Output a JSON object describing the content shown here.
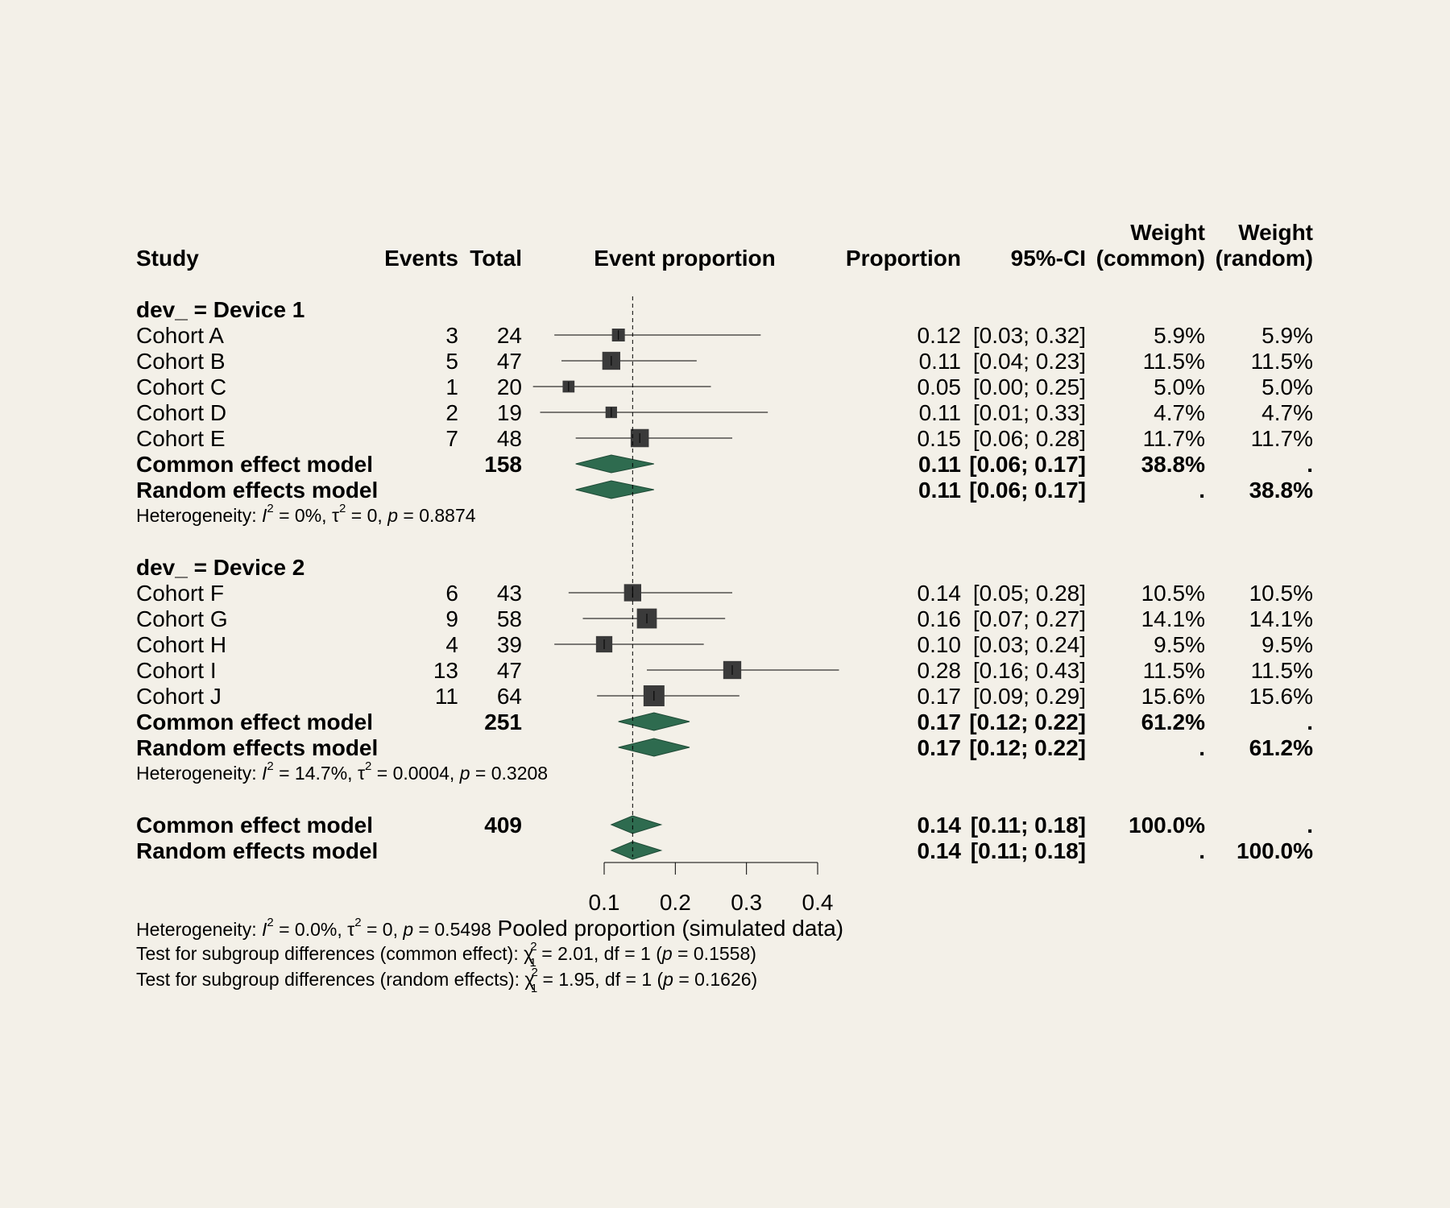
{
  "chart_data": {
    "type": "forest",
    "xlabel": "Pooled proportion (simulated data)",
    "x_ticks": [
      "0.1",
      "0.2",
      "0.3",
      "0.4"
    ],
    "x_tick_values": [
      0.1,
      0.2,
      0.3,
      0.4
    ],
    "reference_line": 0.14,
    "colors": {
      "diamond": "#2e6b4f",
      "square": "#3a3a3a",
      "line": "#000000"
    },
    "headers": {
      "study": "Study",
      "events": "Events",
      "total": "Total",
      "plot": "Event proportion",
      "proportion": "Proportion",
      "ci": "95%-CI",
      "weight_common_1": "Weight",
      "weight_common_2": "(common)",
      "weight_random_1": "Weight",
      "weight_random_2": "(random)"
    },
    "subgroups": [
      {
        "label": "dev_ = Device 1",
        "studies": [
          {
            "name": "Cohort A",
            "events": "3",
            "total": "24",
            "prop": 0.12,
            "lo": 0.03,
            "hi": 0.32,
            "prop_text": "0.12",
            "ci_text": "[0.03; 0.32]",
            "w_common": "5.9%",
            "w_random": "5.9%",
            "weight": 5.9
          },
          {
            "name": "Cohort B",
            "events": "5",
            "total": "47",
            "prop": 0.11,
            "lo": 0.04,
            "hi": 0.23,
            "prop_text": "0.11",
            "ci_text": "[0.04; 0.23]",
            "w_common": "11.5%",
            "w_random": "11.5%",
            "weight": 11.5
          },
          {
            "name": "Cohort C",
            "events": "1",
            "total": "20",
            "prop": 0.05,
            "lo": 0.0,
            "hi": 0.25,
            "prop_text": "0.05",
            "ci_text": "[0.00; 0.25]",
            "w_common": "5.0%",
            "w_random": "5.0%",
            "weight": 5.0
          },
          {
            "name": "Cohort D",
            "events": "2",
            "total": "19",
            "prop": 0.11,
            "lo": 0.01,
            "hi": 0.33,
            "prop_text": "0.11",
            "ci_text": "[0.01; 0.33]",
            "w_common": "4.7%",
            "w_random": "4.7%",
            "weight": 4.7
          },
          {
            "name": "Cohort E",
            "events": "7",
            "total": "48",
            "prop": 0.15,
            "lo": 0.06,
            "hi": 0.28,
            "prop_text": "0.15",
            "ci_text": "[0.06; 0.28]",
            "w_common": "11.7%",
            "w_random": "11.7%",
            "weight": 11.7
          }
        ],
        "common": {
          "label": "Common effect model",
          "total": "158",
          "prop": 0.11,
          "lo": 0.06,
          "hi": 0.17,
          "prop_text": "0.11",
          "ci_text": "[0.06; 0.17]",
          "w_common": "38.8%",
          "w_random": "."
        },
        "random": {
          "label": "Random effects model",
          "total": "",
          "prop": 0.11,
          "lo": 0.06,
          "hi": 0.17,
          "prop_text": "0.11",
          "ci_text": "[0.06; 0.17]",
          "w_common": ".",
          "w_random": "38.8%"
        },
        "heterogeneity": {
          "prefix": "Heterogeneity: ",
          "I2": "I",
          "I2_sup": "2",
          "I2_val": " = 0%, ",
          "tau": "τ",
          "tau_sup": "2",
          "tau_val": " = 0, ",
          "p": "p",
          "p_val": " = 0.8874"
        }
      },
      {
        "label": "dev_ = Device 2",
        "studies": [
          {
            "name": "Cohort F",
            "events": "6",
            "total": "43",
            "prop": 0.14,
            "lo": 0.05,
            "hi": 0.28,
            "prop_text": "0.14",
            "ci_text": "[0.05; 0.28]",
            "w_common": "10.5%",
            "w_random": "10.5%",
            "weight": 10.5
          },
          {
            "name": "Cohort G",
            "events": "9",
            "total": "58",
            "prop": 0.16,
            "lo": 0.07,
            "hi": 0.27,
            "prop_text": "0.16",
            "ci_text": "[0.07; 0.27]",
            "w_common": "14.1%",
            "w_random": "14.1%",
            "weight": 14.1
          },
          {
            "name": "Cohort H",
            "events": "4",
            "total": "39",
            "prop": 0.1,
            "lo": 0.03,
            "hi": 0.24,
            "prop_text": "0.10",
            "ci_text": "[0.03; 0.24]",
            "w_common": "9.5%",
            "w_random": "9.5%",
            "weight": 9.5
          },
          {
            "name": "Cohort I",
            "events": "13",
            "total": "47",
            "prop": 0.28,
            "lo": 0.16,
            "hi": 0.43,
            "prop_text": "0.28",
            "ci_text": "[0.16; 0.43]",
            "w_common": "11.5%",
            "w_random": "11.5%",
            "weight": 11.5
          },
          {
            "name": "Cohort J",
            "events": "11",
            "total": "64",
            "prop": 0.17,
            "lo": 0.09,
            "hi": 0.29,
            "prop_text": "0.17",
            "ci_text": "[0.09; 0.29]",
            "w_common": "15.6%",
            "w_random": "15.6%",
            "weight": 15.6
          }
        ],
        "common": {
          "label": "Common effect model",
          "total": "251",
          "prop": 0.17,
          "lo": 0.12,
          "hi": 0.22,
          "prop_text": "0.17",
          "ci_text": "[0.12; 0.22]",
          "w_common": "61.2%",
          "w_random": "."
        },
        "random": {
          "label": "Random effects model",
          "total": "",
          "prop": 0.17,
          "lo": 0.12,
          "hi": 0.22,
          "prop_text": "0.17",
          "ci_text": "[0.12; 0.22]",
          "w_common": ".",
          "w_random": "61.2%"
        },
        "heterogeneity": {
          "prefix": "Heterogeneity: ",
          "I2": "I",
          "I2_sup": "2",
          "I2_val": " = 14.7%, ",
          "tau": "τ",
          "tau_sup": "2",
          "tau_val": " = 0.0004, ",
          "p": "p",
          "p_val": " = 0.3208"
        }
      }
    ],
    "overall": {
      "common": {
        "label": "Common effect model",
        "total": "409",
        "prop": 0.14,
        "lo": 0.11,
        "hi": 0.18,
        "prop_text": "0.14",
        "ci_text": "[0.11; 0.18]",
        "w_common": "100.0%",
        "w_random": "."
      },
      "random": {
        "label": "Random effects model",
        "total": "",
        "prop": 0.14,
        "lo": 0.11,
        "hi": 0.18,
        "prop_text": "0.14",
        "ci_text": "[0.11; 0.18]",
        "w_common": ".",
        "w_random": "100.0%"
      }
    },
    "footer": {
      "heterogeneity": {
        "prefix": "Heterogeneity: ",
        "I2": "I",
        "I2_sup": "2",
        "I2_val": " = 0.0%, ",
        "tau": "τ",
        "tau_sup": "2",
        "tau_val": " = 0, ",
        "p": "p",
        "p_val": " = 0.5498"
      },
      "test_common": {
        "prefix": "Test for subgroup differences (common effect): ",
        "chi": "χ",
        "chi_sup": "2",
        "chi_sub": "1",
        "stat": " = 2.01, df = 1 (",
        "p": "p",
        "p_val": " = 0.1558)"
      },
      "test_random": {
        "prefix": "Test for subgroup differences (random effects): ",
        "chi": "χ",
        "chi_sup": "2",
        "chi_sub": "1",
        "stat": " = 1.95, df = 1 (",
        "p": "p",
        "p_val": " = 0.1626)"
      }
    }
  }
}
